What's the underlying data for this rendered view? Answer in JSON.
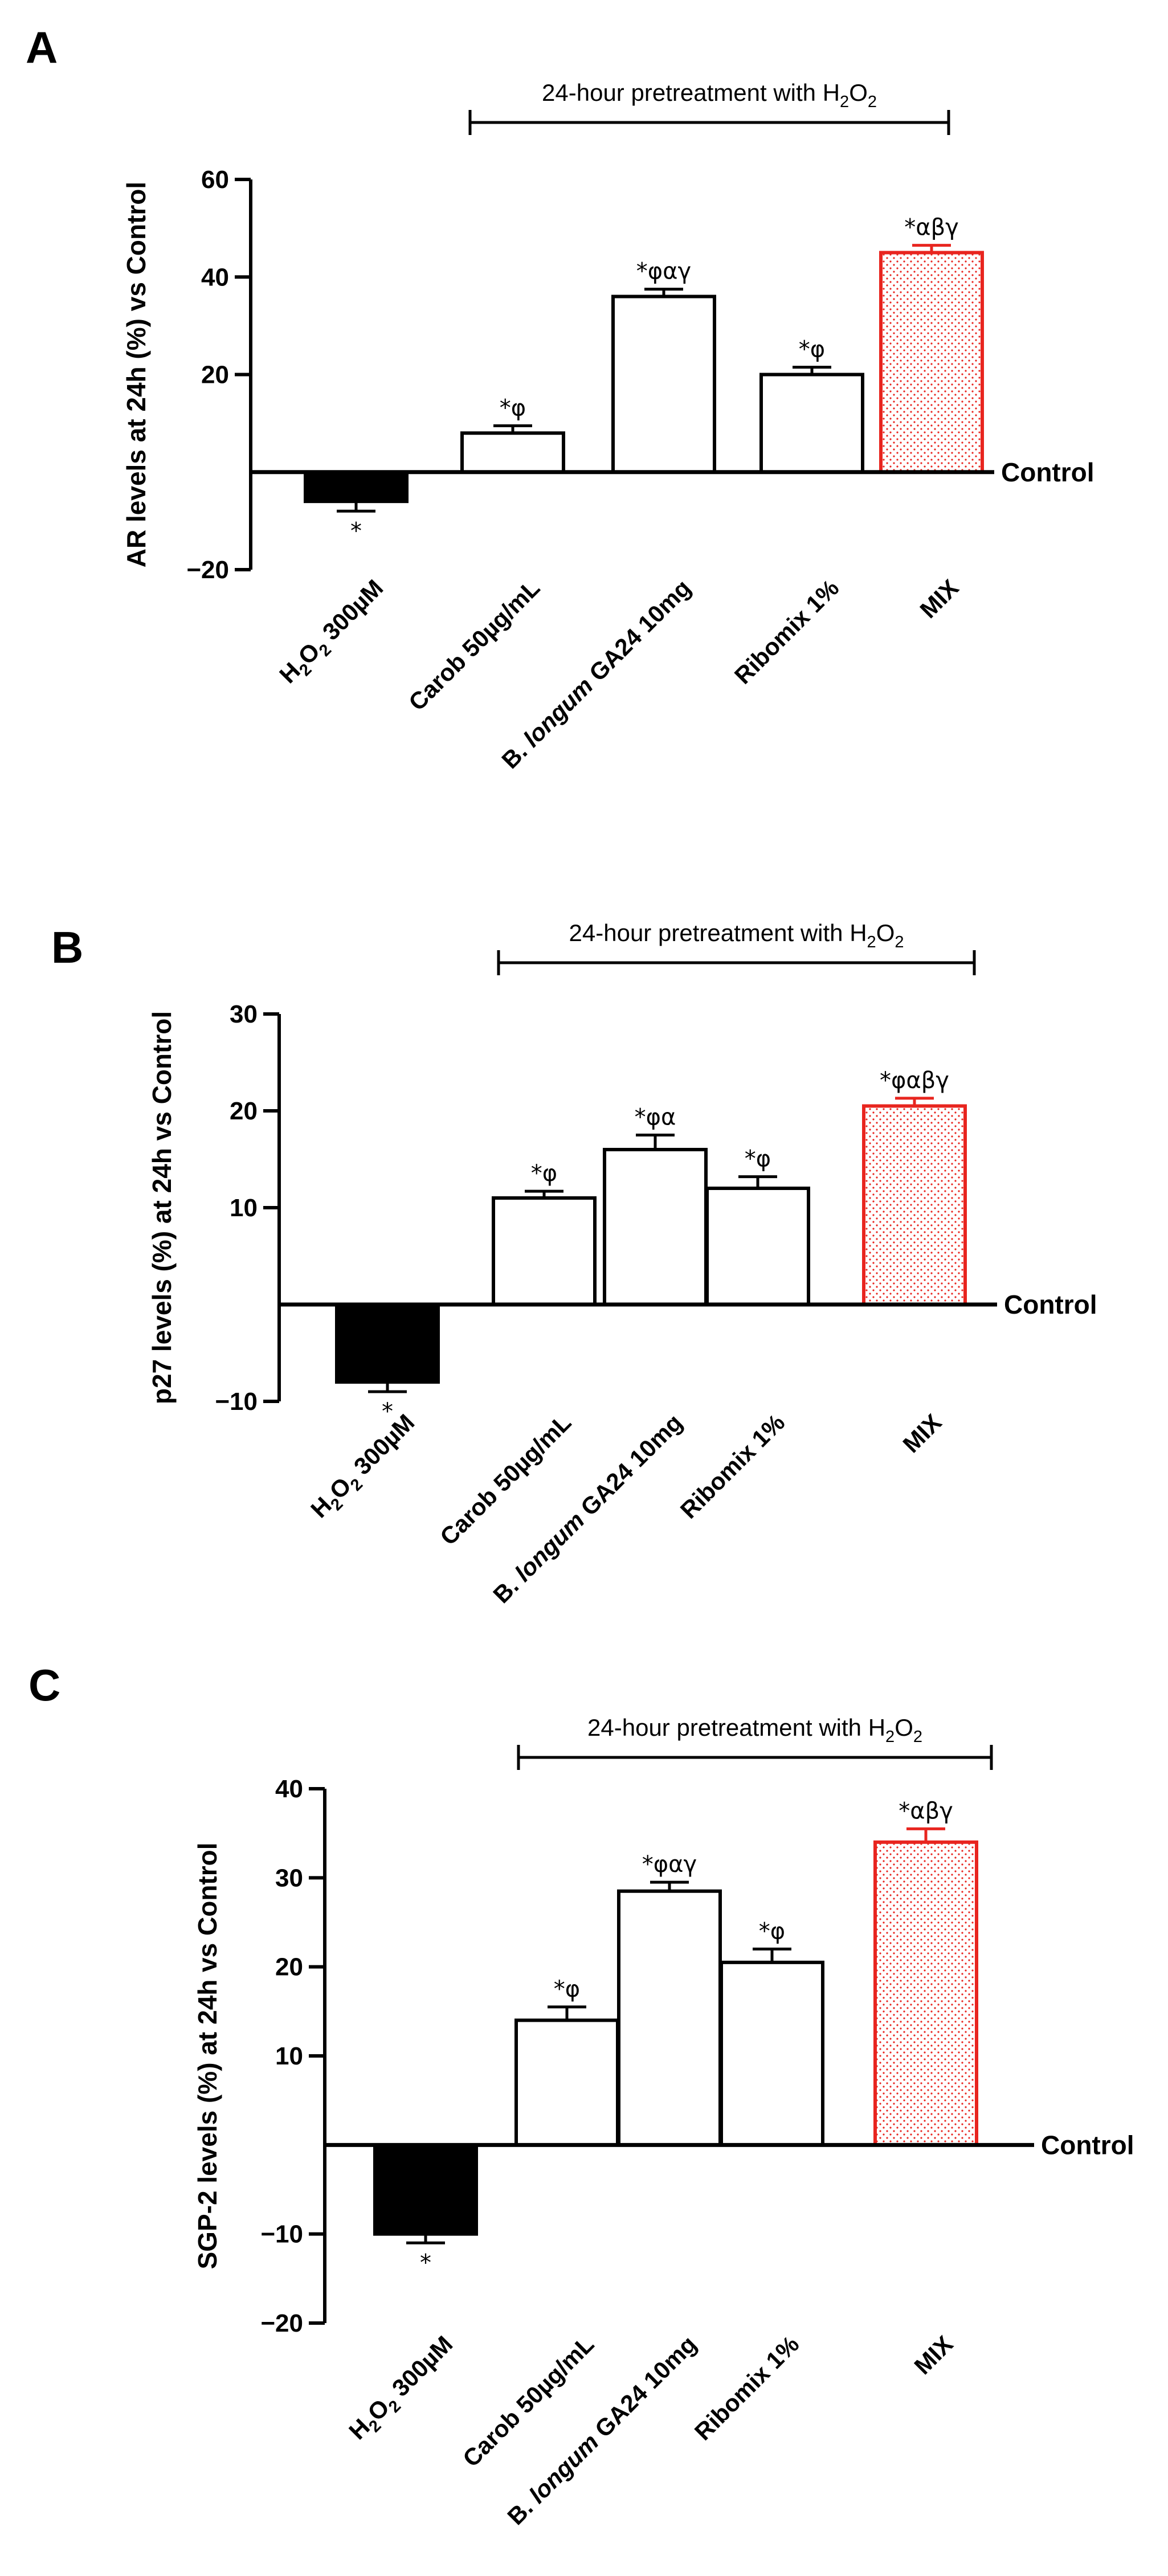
{
  "bracket_label": "24-hour pretreatment with H₂O₂",
  "reference_label": "Control",
  "categories": [
    "H₂O₂ 300µM",
    "Carob 50µg/mL",
    "B. longum GA24 10mg",
    "Ribomix 1%",
    "MIX"
  ],
  "colors": {
    "black": "#000000",
    "outline": "#000000",
    "mix": "#e8251f",
    "mix_dots": "#e8251f"
  },
  "chart_data": [
    {
      "type": "bar",
      "panel": "A",
      "ylabel": "AR levels at 24h (%) vs Control",
      "ylim": [
        -20,
        60
      ],
      "yticks": [
        60,
        40,
        20,
        -20
      ],
      "categories": [
        "H₂O₂ 300µM",
        "Carob 50µg/mL",
        "B. longum GA24 10mg",
        "Ribomix 1%",
        "MIX"
      ],
      "values": [
        -6,
        8,
        36,
        20,
        45
      ],
      "errors": [
        2,
        1.5,
        1.5,
        1.5,
        1.5
      ],
      "annotations": [
        "*",
        "*φ",
        "*φαγ",
        "*φ",
        "*αβγ"
      ],
      "reference": "Control"
    },
    {
      "type": "bar",
      "panel": "B",
      "ylabel": "p27 levels (%) at 24h vs Control",
      "ylim": [
        -10,
        30
      ],
      "yticks": [
        30,
        20,
        10,
        -10
      ],
      "categories": [
        "H₂O₂ 300µM",
        "Carob 50µg/mL",
        "B. longum GA24 10mg",
        "Ribomix 1%",
        "MIX"
      ],
      "values": [
        -8,
        11,
        16,
        12,
        20.5
      ],
      "errors": [
        1,
        0.7,
        1.5,
        1.2,
        0.8
      ],
      "annotations": [
        "*",
        "*φ",
        "*φα",
        "*φ",
        "*φαβγ"
      ],
      "reference": "Control"
    },
    {
      "type": "bar",
      "panel": "C",
      "ylabel": "SGP-2 levels (%) at 24h vs Control",
      "ylim": [
        -20,
        40
      ],
      "yticks": [
        40,
        30,
        20,
        10,
        -10,
        -20
      ],
      "categories": [
        "H₂O₂ 300µM",
        "Carob 50µg/mL",
        "B. longum GA24 10mg",
        "Ribomix 1%",
        "MIX"
      ],
      "values": [
        -10,
        14,
        28.5,
        20.5,
        34
      ],
      "errors": [
        1,
        1.5,
        1,
        1.5,
        1.5
      ],
      "annotations": [
        "*",
        "*φ",
        "*φαγ",
        "*φ",
        "*αβγ"
      ],
      "reference": "Control"
    }
  ]
}
